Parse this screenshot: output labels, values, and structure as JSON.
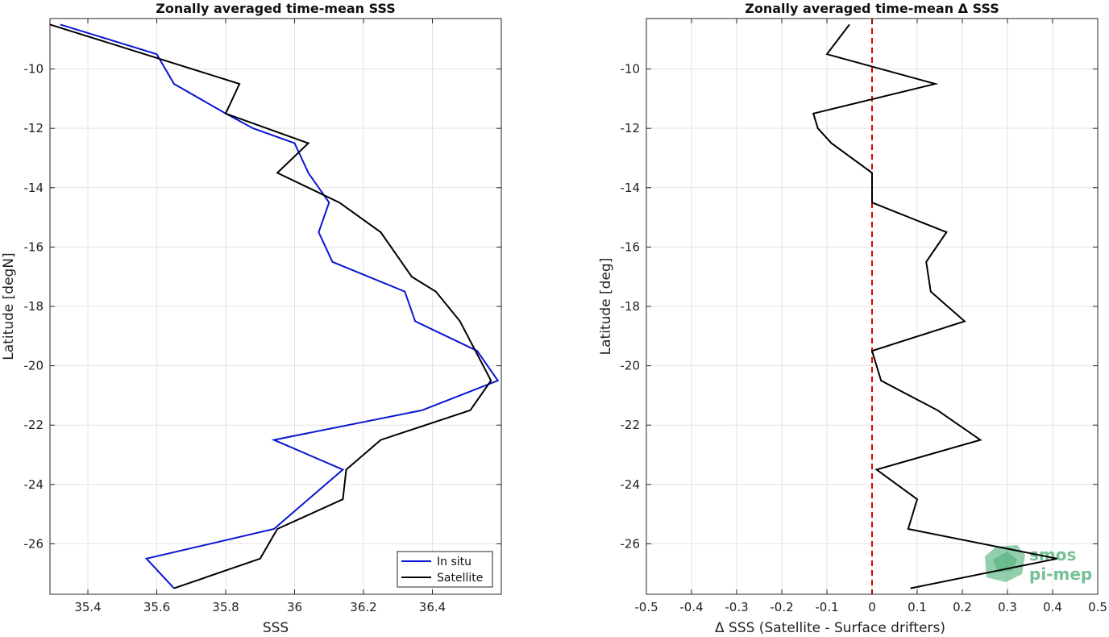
{
  "chart_data": [
    {
      "type": "line",
      "title": "Zonally averaged time-mean SSS",
      "xlabel": "SSS",
      "ylabel": "Latitude [degN]",
      "xlim": [
        35.29,
        36.6
      ],
      "ylim": [
        -27.7,
        -8.3
      ],
      "xticks": [
        35.4,
        35.6,
        35.8,
        36.0,
        36.2,
        36.4
      ],
      "xtick_labels": [
        "35.4",
        "35.6",
        "35.8",
        "36",
        "36.2",
        "36.4"
      ],
      "yticks": [
        -10,
        -12,
        -14,
        -16,
        -18,
        -20,
        -22,
        -24,
        -26
      ],
      "ytick_labels": [
        "-10",
        "-12",
        "-14",
        "-16",
        "-18",
        "-20",
        "-22",
        "-24",
        "-26"
      ],
      "grid": true,
      "legend": "bottom-right",
      "series": [
        {
          "name": "In situ",
          "color": "#0a14d2",
          "points": [
            [
              35.32,
              -8.5
            ],
            [
              35.6,
              -9.5
            ],
            [
              35.65,
              -10.5
            ],
            [
              35.8,
              -11.5
            ],
            [
              35.88,
              -12
            ],
            [
              36.0,
              -12.5
            ],
            [
              36.04,
              -13.5
            ],
            [
              36.1,
              -14.5
            ],
            [
              36.07,
              -15.5
            ],
            [
              36.11,
              -16.5
            ],
            [
              36.32,
              -17.5
            ],
            [
              36.35,
              -18.5
            ],
            [
              36.53,
              -19.5
            ],
            [
              36.59,
              -20.5
            ],
            [
              36.37,
              -21.5
            ],
            [
              35.94,
              -22.5
            ],
            [
              36.14,
              -23.5
            ],
            [
              36.04,
              -24.5
            ],
            [
              35.94,
              -25.5
            ],
            [
              35.57,
              -26.5
            ],
            [
              35.65,
              -27.5
            ]
          ]
        },
        {
          "name": "Satellite",
          "color": "#000000",
          "points": [
            [
              35.29,
              -8.5
            ],
            [
              35.84,
              -10.5
            ],
            [
              35.8,
              -11.5
            ],
            [
              36.04,
              -12.5
            ],
            [
              35.95,
              -13.5
            ],
            [
              36.13,
              -14.5
            ],
            [
              36.25,
              -15.5
            ],
            [
              36.34,
              -17
            ],
            [
              36.41,
              -17.5
            ],
            [
              36.48,
              -18.5
            ],
            [
              36.57,
              -20.5
            ],
            [
              36.51,
              -21.5
            ],
            [
              36.25,
              -22.5
            ],
            [
              36.15,
              -23.5
            ],
            [
              36.14,
              -24.5
            ],
            [
              35.95,
              -25.5
            ],
            [
              35.9,
              -26.5
            ],
            [
              35.65,
              -27.5
            ]
          ]
        }
      ]
    },
    {
      "type": "line",
      "title": "Zonally averaged time-mean Δ SSS",
      "xlabel": "Δ SSS (Satellite - Surface drifters)",
      "ylabel": "Latitude [deg]",
      "xlim": [
        -0.5,
        0.5
      ],
      "ylim": [
        -27.7,
        -8.3
      ],
      "xticks": [
        -0.5,
        -0.4,
        -0.3,
        -0.2,
        -0.1,
        0,
        0.1,
        0.2,
        0.3,
        0.4,
        0.5
      ],
      "xtick_labels": [
        "-0.5",
        "-0.4",
        "-0.3",
        "-0.2",
        "-0.1",
        "0",
        "0.1",
        "0.2",
        "0.3",
        "0.4",
        "0.5"
      ],
      "yticks": [
        -10,
        -12,
        -14,
        -16,
        -18,
        -20,
        -22,
        -24,
        -26
      ],
      "ytick_labels": [
        "-10",
        "-12",
        "-14",
        "-16",
        "-18",
        "-20",
        "-22",
        "-24",
        "-26"
      ],
      "grid": true,
      "zero_line": {
        "x": 0,
        "color": "#dd0000",
        "style": "dashed"
      },
      "series": [
        {
          "color": "#000000",
          "points": [
            [
              -0.05,
              -8.5
            ],
            [
              -0.1,
              -9.5
            ],
            [
              0.14,
              -10.5
            ],
            [
              -0.13,
              -11.5
            ],
            [
              -0.12,
              -12
            ],
            [
              -0.09,
              -12.5
            ],
            [
              0.0,
              -13.5
            ],
            [
              0.0,
              -14.5
            ],
            [
              0.165,
              -15.5
            ],
            [
              0.12,
              -16.5
            ],
            [
              0.13,
              -17.5
            ],
            [
              0.205,
              -18.5
            ],
            [
              0.0,
              -19.5
            ],
            [
              0.02,
              -20.5
            ],
            [
              0.145,
              -21.5
            ],
            [
              0.24,
              -22.5
            ],
            [
              0.01,
              -23.5
            ],
            [
              0.1,
              -24.5
            ],
            [
              0.08,
              -25.5
            ],
            [
              0.41,
              -26.5
            ],
            [
              0.085,
              -27.5
            ]
          ]
        }
      ]
    }
  ],
  "watermark": {
    "line1": "smos",
    "line2": "pi-mep",
    "color": "#3aa66a"
  }
}
